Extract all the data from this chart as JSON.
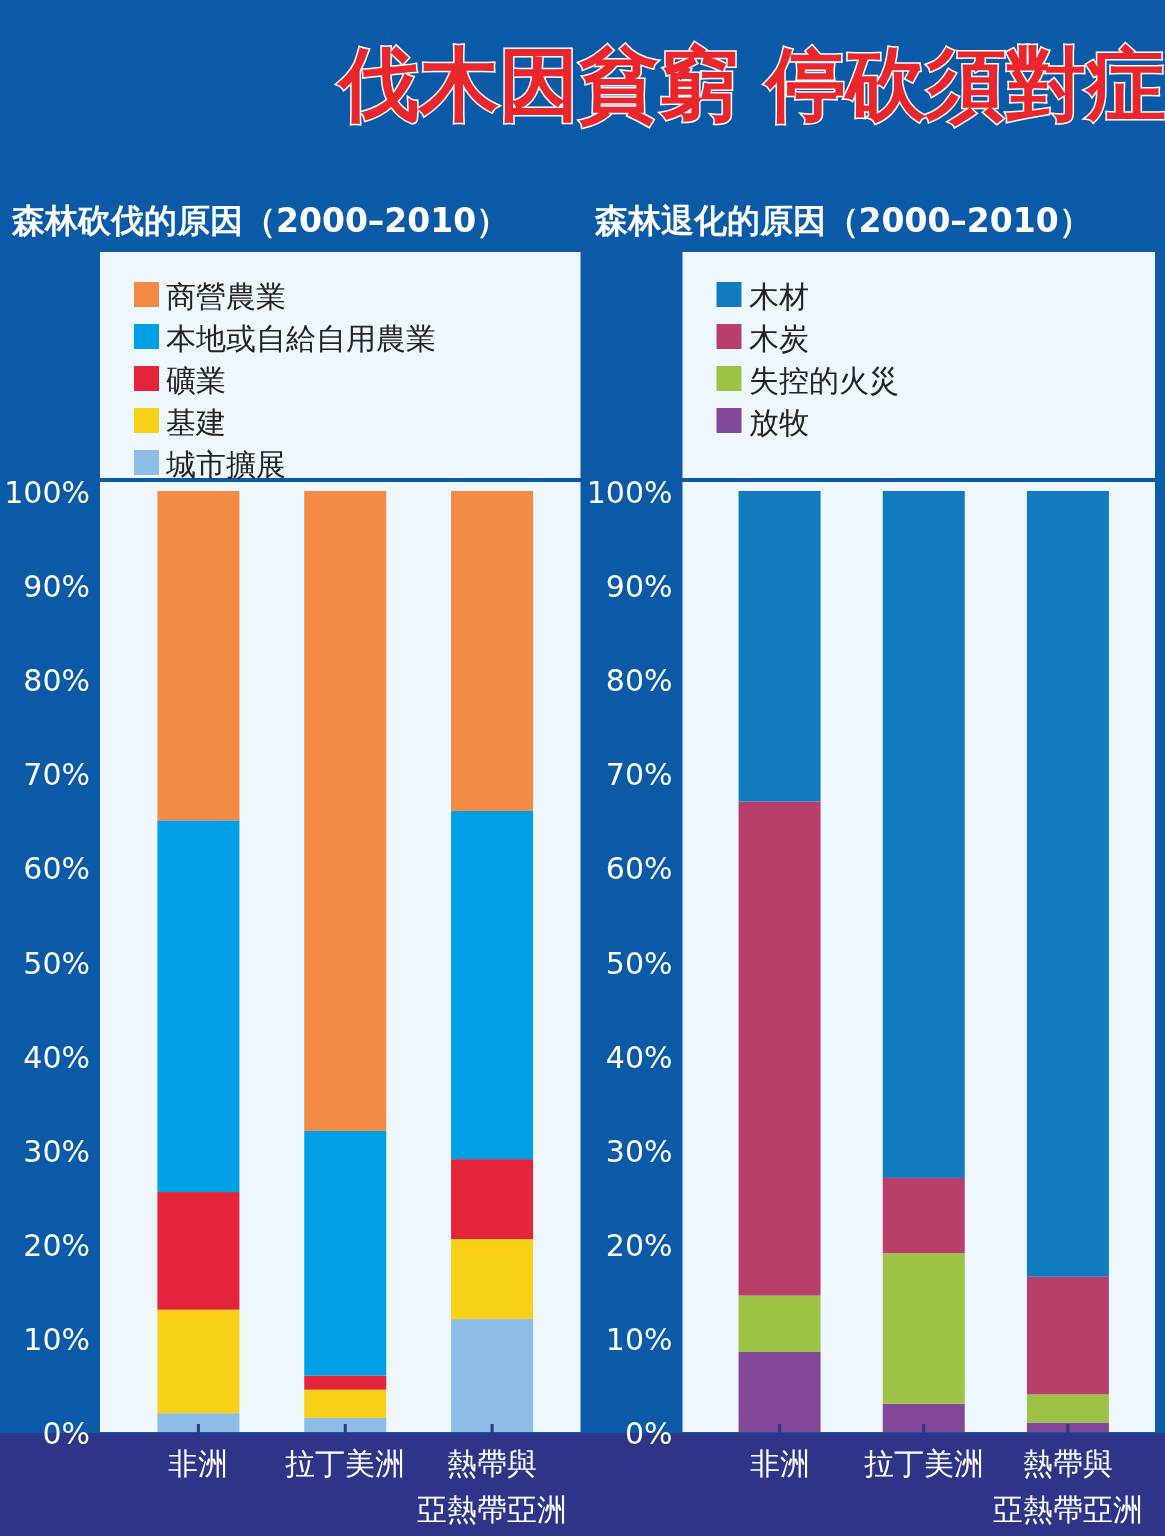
{
  "chart_data": [
    {
      "type": "bar",
      "stacked": true,
      "title": "森林砍伐的原因（2000–2010）",
      "annotations": [
        "伐木因貧窮 停砍須對症"
      ],
      "categories": [
        "非洲",
        "拉丁美洲",
        "熱帶與亞熱帶亞洲"
      ],
      "ylim": [
        0,
        100
      ],
      "yticks": [
        {
          "value": 0,
          "label": "0%"
        },
        {
          "value": 10,
          "label": "10%"
        },
        {
          "value": 20,
          "label": "20%"
        },
        {
          "value": 30,
          "label": "30%"
        },
        {
          "value": 40,
          "label": "40%"
        },
        {
          "value": 50,
          "label": "50%"
        },
        {
          "value": 60,
          "label": "60%"
        },
        {
          "value": 70,
          "label": "70%"
        },
        {
          "value": 80,
          "label": "80%"
        },
        {
          "value": 90,
          "label": "90%"
        },
        {
          "value": 100,
          "label": "100%"
        }
      ],
      "legend": "top left",
      "series": [
        {
          "name": "城市擴展",
          "color": "#8bbde6",
          "values": [
            2,
            1.5,
            12
          ]
        },
        {
          "name": "基建",
          "color": "#f7d117",
          "values": [
            11,
            3,
            8.5
          ]
        },
        {
          "name": "礦業",
          "color": "#e3243b",
          "values": [
            12.5,
            1.5,
            8.5
          ]
        },
        {
          "name": "本地或自給自用農業",
          "color": "#00a0e6",
          "values": [
            39.5,
            26,
            37
          ]
        },
        {
          "name": "商營農業",
          "color": "#f08a45",
          "values": [
            35,
            68,
            34
          ]
        }
      ]
    },
    {
      "type": "bar",
      "stacked": true,
      "title": "森林退化的原因（2000–2010）",
      "categories": [
        "非洲",
        "拉丁美洲",
        "熱帶與亞熱帶亞洲"
      ],
      "ylim": [
        0,
        100
      ],
      "yticks": [
        {
          "value": 0,
          "label": "0%"
        },
        {
          "value": 10,
          "label": "10%"
        },
        {
          "value": 20,
          "label": "20%"
        },
        {
          "value": 30,
          "label": "30%"
        },
        {
          "value": 40,
          "label": "40%"
        },
        {
          "value": 50,
          "label": "50%"
        },
        {
          "value": 60,
          "label": "60%"
        },
        {
          "value": 70,
          "label": "70%"
        },
        {
          "value": 80,
          "label": "80%"
        },
        {
          "value": 90,
          "label": "90%"
        },
        {
          "value": 100,
          "label": "100%"
        }
      ],
      "legend": "top left",
      "series": [
        {
          "name": "放牧",
          "color": "#824797",
          "values": [
            8.5,
            3,
            1
          ]
        },
        {
          "name": "失控的火災",
          "color": "#9cc345",
          "values": [
            6,
            16,
            3
          ]
        },
        {
          "name": "木炭",
          "color": "#b83f6a",
          "values": [
            52.5,
            8,
            12.5
          ]
        },
        {
          "name": "木材",
          "color": "#127bbf",
          "values": [
            33,
            73,
            83.5
          ]
        }
      ]
    }
  ]
}
